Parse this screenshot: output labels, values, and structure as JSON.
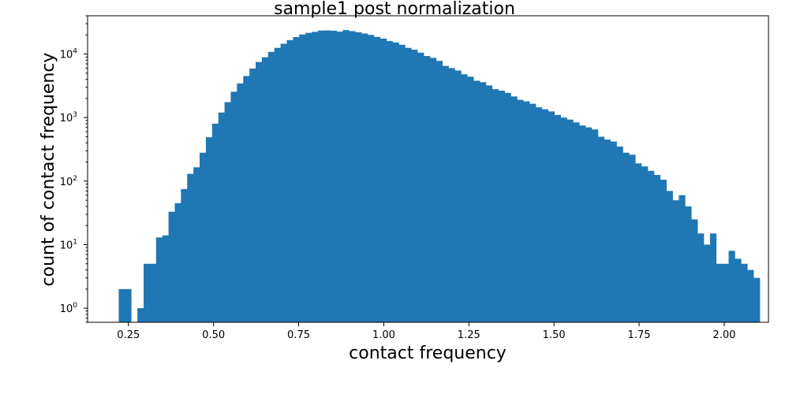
{
  "chart_data": {
    "type": "bar",
    "subtype": "histogram",
    "title": "sample1 post normalization",
    "xlabel": "contact frequency",
    "ylabel": "count of contact frequency",
    "yscale": "log",
    "xlim": [
      0.13,
      2.13
    ],
    "ylim": [
      0.6,
      40000
    ],
    "xticks": [
      {
        "value": 0.25,
        "label": "0.25"
      },
      {
        "value": 0.5,
        "label": "0.50"
      },
      {
        "value": 0.75,
        "label": "0.75"
      },
      {
        "value": 1.0,
        "label": "1.00"
      },
      {
        "value": 1.25,
        "label": "1.25"
      },
      {
        "value": 1.5,
        "label": "1.50"
      },
      {
        "value": 1.75,
        "label": "1.75"
      },
      {
        "value": 2.0,
        "label": "2.00"
      }
    ],
    "yticks": [
      {
        "value": 1,
        "base": "10",
        "exp": "0"
      },
      {
        "value": 10,
        "base": "10",
        "exp": "1"
      },
      {
        "value": 100,
        "base": "10",
        "exp": "2"
      },
      {
        "value": 1000,
        "base": "10",
        "exp": "3"
      },
      {
        "value": 10000,
        "base": "10",
        "exp": "4"
      }
    ],
    "bin_start": 0.2215,
    "bin_width": 0.01828,
    "color": "#1f77b4",
    "counts": [
      2,
      2,
      0,
      1,
      5,
      5,
      13,
      14,
      33,
      45,
      75,
      130,
      165,
      280,
      490,
      800,
      1200,
      1750,
      2550,
      3450,
      4500,
      5900,
      7500,
      8900,
      10800,
      12500,
      14500,
      16500,
      18500,
      20300,
      21500,
      22300,
      23400,
      23500,
      23300,
      22500,
      23800,
      22900,
      22000,
      21000,
      20000,
      18600,
      17500,
      16000,
      15200,
      14000,
      12500,
      11700,
      10500,
      9300,
      8700,
      7800,
      6500,
      6000,
      5500,
      4800,
      4400,
      3800,
      3600,
      3200,
      2800,
      2650,
      2450,
      2150,
      1900,
      1800,
      1650,
      1450,
      1350,
      1250,
      1100,
      1000,
      930,
      840,
      750,
      700,
      650,
      500,
      450,
      420,
      350,
      280,
      260,
      190,
      170,
      145,
      125,
      105,
      70,
      50,
      60,
      40,
      25,
      15,
      10,
      15,
      5,
      5,
      8,
      6,
      5,
      4,
      3,
      0,
      0,
      0,
      0,
      0,
      0,
      0,
      0
    ]
  }
}
